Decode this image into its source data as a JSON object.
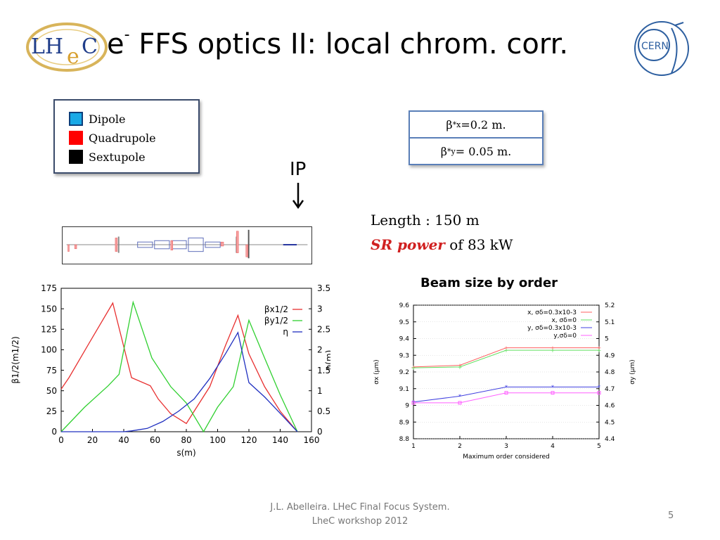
{
  "slide": {
    "title_prefix": "e",
    "title_sup": "-",
    "title_rest": " FFS optics II: local chrom. corr.",
    "logo_text_left": "LH",
    "logo_text_e": "e",
    "logo_text_right": "C",
    "cern_logo_text": "CERN",
    "footer_line1": "J.L. Abelleira. LHeC Final Focus System.",
    "footer_line2": "LheC workshop 2012",
    "page_number": "5"
  },
  "legend": {
    "items": [
      {
        "label": "Dipole",
        "color": "#19a9e6"
      },
      {
        "label": "Quadrupole",
        "color": "#ff0000"
      },
      {
        "label": "Sextupole",
        "color": "#000000"
      }
    ]
  },
  "beta_table": {
    "row1_beta": "β",
    "row1_sup": "*",
    "row1_sub": "x",
    "row1_value": " =0.2 m.",
    "row2_beta": "β",
    "row2_sup": "*",
    "row2_sub": "y",
    "row2_value": " = 0.05 m."
  },
  "ip": {
    "label": "IP"
  },
  "specs": {
    "length_text": "Length : 150 m",
    "sr_label": "SR power",
    "sr_value": " of  83 kW"
  },
  "beam_size_title": "Beam size by order",
  "chart_data": [
    {
      "type": "line",
      "title": "",
      "xlabel": "s(m)",
      "ylabel": "β1/2(m1/2)",
      "y2label": "η(m)",
      "xlim": [
        0,
        160
      ],
      "ylim": [
        0,
        175
      ],
      "y2lim": [
        0,
        3.5
      ],
      "xticks": [
        0,
        20,
        40,
        60,
        80,
        100,
        120,
        140,
        160
      ],
      "yticks": [
        0,
        25,
        50,
        75,
        100,
        125,
        150,
        175
      ],
      "y2ticks": [
        0,
        0.5,
        1,
        1.5,
        2,
        2.5,
        3,
        3.5
      ],
      "legend_position": "top-right",
      "series": [
        {
          "name": "βx1/2",
          "color": "#e83030",
          "axis": "left",
          "x": [
            0,
            5,
            20,
            33,
            45,
            57,
            62,
            70,
            80,
            85,
            95,
            105,
            113,
            120,
            130,
            140,
            151
          ],
          "y": [
            52,
            66,
            115,
            157,
            66,
            56,
            40,
            22,
            10,
            25,
            55,
            105,
            142,
            95,
            55,
            25,
            0
          ]
        },
        {
          "name": "βy1/2",
          "color": "#30d030",
          "axis": "left",
          "x": [
            0,
            15,
            30,
            37,
            46,
            58,
            70,
            80,
            91,
            100,
            110,
            120,
            130,
            140,
            151
          ],
          "y": [
            0,
            30,
            56,
            70,
            158,
            90,
            55,
            35,
            0,
            30,
            55,
            136,
            90,
            45,
            0
          ]
        },
        {
          "name": "η",
          "color": "#2030c0",
          "axis": "right",
          "x": [
            0,
            40,
            45,
            55,
            65,
            75,
            85,
            95,
            105,
            113,
            120,
            130,
            140,
            151
          ],
          "y": [
            0,
            0,
            0.02,
            0.08,
            0.25,
            0.5,
            0.8,
            1.3,
            1.9,
            2.42,
            1.2,
            0.85,
            0.45,
            0
          ]
        }
      ]
    },
    {
      "type": "line",
      "title": "Beam size by order",
      "xlabel": "Maximum order considered",
      "ylabel": "σx (μm)",
      "y2label": "σy (μm)",
      "xlim": [
        1,
        5
      ],
      "ylim": [
        8.8,
        9.6
      ],
      "y2lim": [
        4.4,
        5.2
      ],
      "xticks": [
        1,
        2,
        3,
        4,
        5
      ],
      "yticks": [
        8.8,
        8.9,
        9,
        9.1,
        9.2,
        9.3,
        9.4,
        9.5,
        9.6
      ],
      "y2ticks": [
        4.4,
        4.5,
        4.6,
        4.7,
        4.8,
        4.9,
        5,
        5.1,
        5.2
      ],
      "legend_position": "top-right",
      "series": [
        {
          "name": "x, σδ=0.3x10-3",
          "color": "#ff6060",
          "axis": "left",
          "x": [
            1,
            2,
            3,
            4,
            5
          ],
          "y": [
            9.23,
            9.24,
            9.345,
            9.345,
            9.345
          ]
        },
        {
          "name": "x, σδ=0",
          "color": "#60e060",
          "axis": "left",
          "x": [
            1,
            2,
            3,
            4,
            5
          ],
          "y": [
            9.225,
            9.23,
            9.33,
            9.33,
            9.33
          ]
        },
        {
          "name": "y, σδ=0.3x10-3",
          "color": "#4040e0",
          "axis": "right",
          "x": [
            1,
            2,
            3,
            4,
            5
          ],
          "y": [
            4.62,
            4.655,
            4.71,
            4.71,
            4.71
          ]
        },
        {
          "name": "y,σδ=0",
          "color": "#ff60ff",
          "axis": "right",
          "x": [
            1,
            2,
            3,
            4,
            5
          ],
          "y": [
            4.615,
            4.615,
            4.675,
            4.675,
            4.675
          ]
        }
      ]
    }
  ]
}
